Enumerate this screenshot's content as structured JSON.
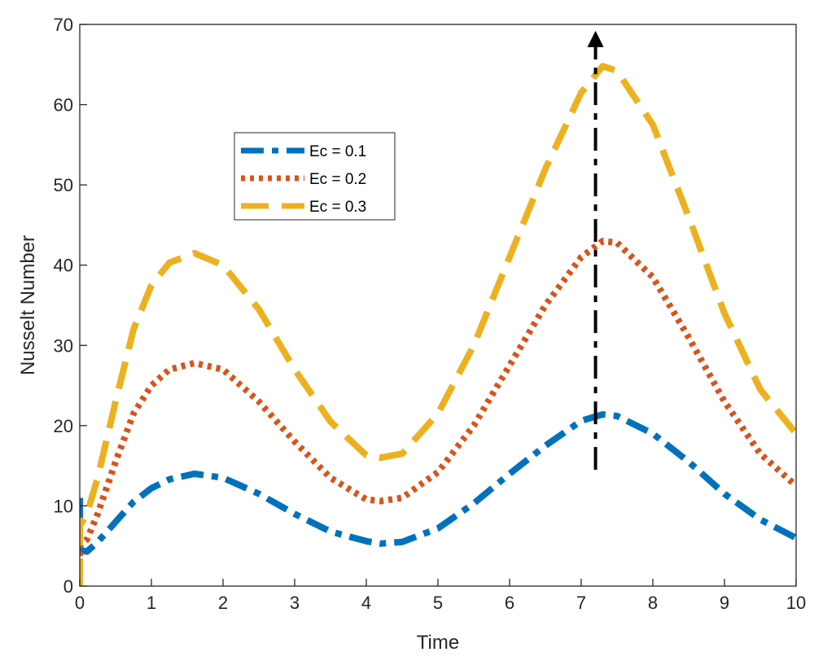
{
  "chart_data": {
    "type": "line",
    "title": "",
    "xlabel": "Time",
    "ylabel": "Nusselt Number",
    "xlim": [
      0,
      10
    ],
    "ylim": [
      0,
      70
    ],
    "xticks": [
      "0",
      "1",
      "2",
      "3",
      "4",
      "5",
      "6",
      "7",
      "8",
      "9",
      "10"
    ],
    "yticks": [
      "0",
      "10",
      "20",
      "30",
      "40",
      "50",
      "60",
      "70"
    ],
    "grid": false,
    "legend_position": "upper-left-inside",
    "x": [
      0,
      0.1,
      0.25,
      0.5,
      0.75,
      1.0,
      1.25,
      1.6,
      2.0,
      2.5,
      3.0,
      3.5,
      4.0,
      4.2,
      4.5,
      5.0,
      5.5,
      6.0,
      6.5,
      7.0,
      7.3,
      7.5,
      8.0,
      8.5,
      9.0,
      9.5,
      10.0
    ],
    "series": [
      {
        "name": "Ec = 0.1",
        "color": "#0072BD",
        "style": "dashdot",
        "start_points": [
          [
            0,
            11
          ],
          [
            0,
            4.5
          ]
        ],
        "values": [
          4.5,
          4.3,
          5.5,
          8.0,
          10.5,
          12.2,
          13.3,
          14.0,
          13.5,
          11.5,
          9.0,
          6.8,
          5.6,
          5.3,
          5.5,
          7.2,
          10.3,
          14.0,
          17.5,
          20.6,
          21.4,
          21.2,
          19.0,
          15.5,
          11.5,
          8.3,
          6.0
        ]
      },
      {
        "name": "Ec = 0.2",
        "color": "#D95319",
        "style": "dotted",
        "start_points": [
          [
            0,
            1.5
          ],
          [
            0,
            5
          ]
        ],
        "values": [
          5,
          5.8,
          9.0,
          15.5,
          21.5,
          25.0,
          27.0,
          27.8,
          27.0,
          23.0,
          18.0,
          13.5,
          10.8,
          10.6,
          11.0,
          14.2,
          20.0,
          27.5,
          35.0,
          41.0,
          43.0,
          42.8,
          38.5,
          31.0,
          23.0,
          16.5,
          12.5
        ]
      },
      {
        "name": "Ec = 0.3",
        "color": "#EDB120",
        "style": "dashed",
        "start_points": [
          [
            0,
            0
          ],
          [
            0,
            7.5
          ]
        ],
        "values": [
          7.5,
          9.0,
          13.5,
          23.0,
          32.0,
          37.5,
          40.3,
          41.5,
          40.0,
          34.5,
          27.0,
          20.5,
          16.3,
          16.0,
          16.5,
          21.5,
          30.0,
          41.0,
          52.0,
          61.5,
          64.8,
          64.2,
          57.5,
          46.0,
          34.0,
          24.5,
          19.0
        ]
      }
    ],
    "annotation": {
      "type": "arrow",
      "x": 7.2,
      "y_from": 14.5,
      "y_to": 69,
      "style": "dashdot",
      "color": "#000000"
    }
  }
}
